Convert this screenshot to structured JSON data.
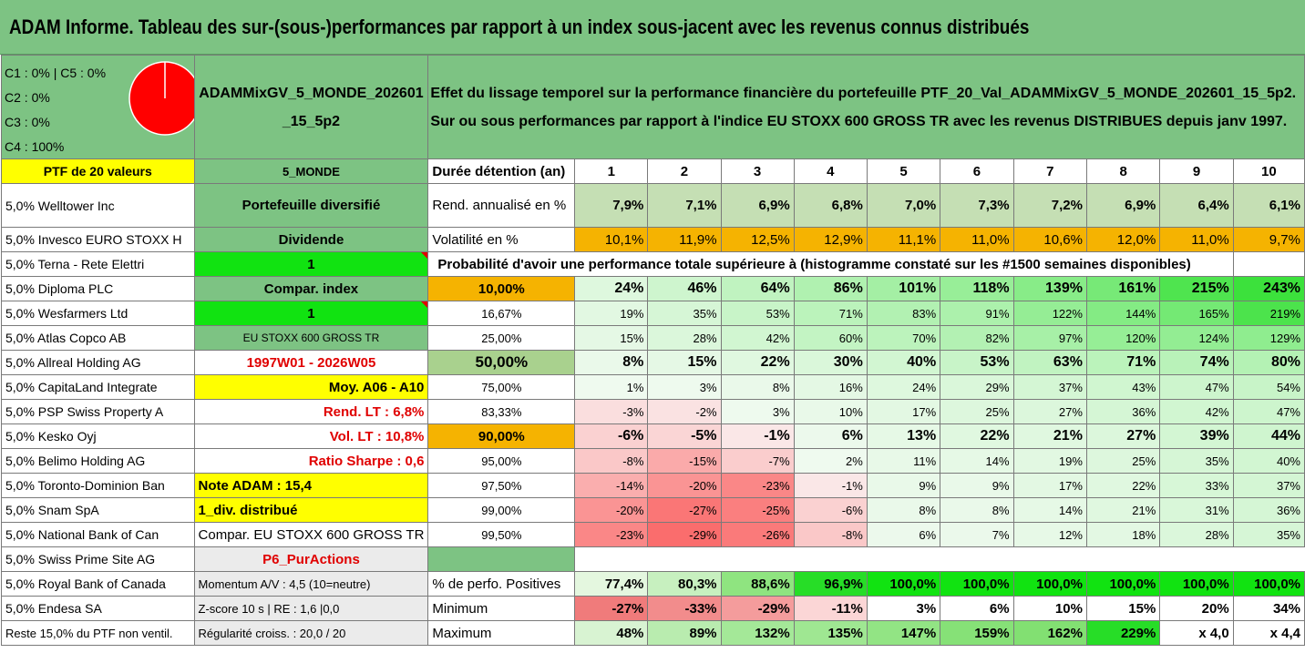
{
  "title": "ADAM Informe. Tableau des sur-(sous-)performances par rapport à un index sous-jacent avec les revenus connus distribués",
  "legend": [
    "C1 : 0% | C5 : 0%",
    "C2 : 0%",
    "C3 : 0%",
    "C4 : 100%"
  ],
  "pie_color": "#ff0000",
  "fund_name": "ADAMMixGV_5_MONDE_202601_15_5p2",
  "description": [
    "Effet du lissage temporel sur la performance financière du portefeuille PTF_20_Val_ADAMMixGV_5_MONDE_202601_15_5p2.",
    "Sur ou sous performances par rapport à l'indice EU STOXX 600 GROSS TR avec les revenus DISTRIBUES depuis janv 1997."
  ],
  "ptf_label": "PTF de 20 valeurs",
  "holdings": [
    "5,0% Welltower Inc",
    "5,0% Invesco EURO STOXX H",
    "5,0% Terna - Rete Elettri",
    "5,0% Diploma PLC",
    "5,0% Wesfarmers Ltd",
    "5,0% Atlas Copco AB",
    "5,0% Allreal Holding AG",
    "5,0% CapitaLand Integrate",
    "5,0% PSP Swiss Property A",
    "5,0% Kesko Oyj",
    "5,0% Belimo Holding AG",
    "5,0% Toronto-Dominion Ban",
    "5,0% Snam SpA",
    "5,0% National Bank of Can",
    "5,0% Swiss Prime Site AG",
    "5,0% Royal Bank of Canada",
    "5,0% Endesa SA",
    "Reste 15,0% du PTF non ventil."
  ],
  "info": [
    "5_MONDE",
    "Portefeuille diversifié",
    "Dividende",
    "1",
    "Compar. index",
    "1",
    "EU STOXX 600 GROSS TR",
    "1997W01 - 2026W05",
    "Moy. A06 - A10",
    "Rend. LT : 6,8%",
    "Vol. LT : 10,8%",
    "Ratio Sharpe : 0,6",
    "Note ADAM : 15,4",
    "1_div. distribué",
    "Compar. EU STOXX 600 GROSS TR",
    "P6_PurActions",
    "Momentum A/V : 4,5 (10=neutre)",
    "Z-score 10 s | RE : 1,6 |0,0",
    "Régularité croiss. : 20,0 / 20"
  ],
  "duration_label": "Durée détention (an)",
  "years": [
    "1",
    "2",
    "3",
    "4",
    "5",
    "6",
    "7",
    "8",
    "9",
    "10"
  ],
  "rend_label": "Rend. annualisé en %",
  "rend": [
    "7,9%",
    "7,1%",
    "6,9%",
    "6,8%",
    "7,0%",
    "7,3%",
    "7,2%",
    "6,9%",
    "6,4%",
    "6,1%"
  ],
  "vol_label": "Volatilité en %",
  "vol": [
    "10,1%",
    "11,9%",
    "12,5%",
    "12,9%",
    "11,1%",
    "11,0%",
    "10,6%",
    "12,0%",
    "11,0%",
    "9,7%"
  ],
  "proba_title": "Probabilité d'avoir une performance totale supérieure à (histogramme constaté sur les #1500 semaines disponibles)",
  "proba_rows": [
    {
      "p": "10,00%",
      "v": [
        "24%",
        "46%",
        "64%",
        "86%",
        "101%",
        "118%",
        "139%",
        "161%",
        "215%",
        "243%"
      ]
    },
    {
      "p": "16,67%",
      "v": [
        "19%",
        "35%",
        "53%",
        "71%",
        "83%",
        "91%",
        "122%",
        "144%",
        "165%",
        "219%"
      ]
    },
    {
      "p": "25,00%",
      "v": [
        "15%",
        "28%",
        "42%",
        "60%",
        "70%",
        "82%",
        "97%",
        "120%",
        "124%",
        "129%"
      ]
    },
    {
      "p": "50,00%",
      "v": [
        "8%",
        "15%",
        "22%",
        "30%",
        "40%",
        "53%",
        "63%",
        "71%",
        "74%",
        "80%"
      ]
    },
    {
      "p": "75,00%",
      "v": [
        "1%",
        "3%",
        "8%",
        "16%",
        "24%",
        "29%",
        "37%",
        "43%",
        "47%",
        "54%"
      ]
    },
    {
      "p": "83,33%",
      "v": [
        "-3%",
        "-2%",
        "3%",
        "10%",
        "17%",
        "25%",
        "27%",
        "36%",
        "42%",
        "47%"
      ]
    },
    {
      "p": "90,00%",
      "v": [
        "-6%",
        "-5%",
        "-1%",
        "6%",
        "13%",
        "22%",
        "21%",
        "27%",
        "39%",
        "44%"
      ]
    },
    {
      "p": "95,00%",
      "v": [
        "-8%",
        "-15%",
        "-7%",
        "2%",
        "11%",
        "14%",
        "19%",
        "25%",
        "35%",
        "40%"
      ]
    },
    {
      "p": "97,50%",
      "v": [
        "-14%",
        "-20%",
        "-23%",
        "-1%",
        "9%",
        "9%",
        "17%",
        "22%",
        "33%",
        "37%"
      ]
    },
    {
      "p": "99,00%",
      "v": [
        "-20%",
        "-27%",
        "-25%",
        "-6%",
        "8%",
        "8%",
        "14%",
        "21%",
        "31%",
        "36%"
      ]
    },
    {
      "p": "99,50%",
      "v": [
        "-23%",
        "-29%",
        "-26%",
        "-8%",
        "6%",
        "7%",
        "12%",
        "18%",
        "28%",
        "35%"
      ]
    }
  ],
  "pos_label": "% de perfo. Positives",
  "pos": [
    "77,4%",
    "80,3%",
    "88,6%",
    "96,9%",
    "100,0%",
    "100,0%",
    "100,0%",
    "100,0%",
    "100,0%",
    "100,0%"
  ],
  "min_label": "Minimum",
  "min": [
    "-27%",
    "-33%",
    "-29%",
    "-11%",
    "3%",
    "6%",
    "10%",
    "15%",
    "20%",
    "34%"
  ],
  "max_label": "Maximum",
  "max": [
    "48%",
    "89%",
    "132%",
    "135%",
    "147%",
    "159%",
    "162%",
    "229%",
    "x 4,0",
    "x 4,4"
  ]
}
